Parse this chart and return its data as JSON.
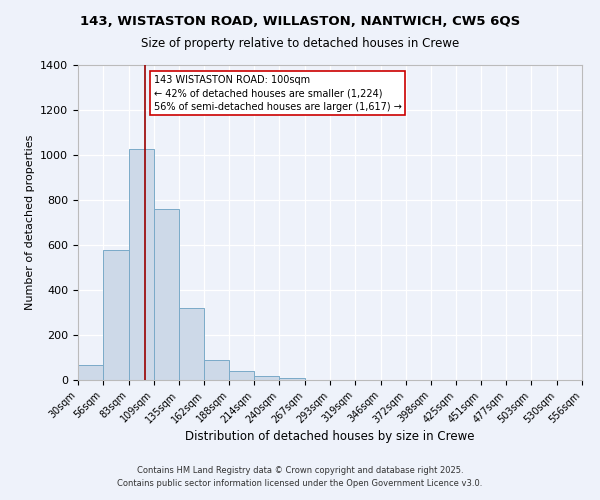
{
  "title": "143, WISTASTON ROAD, WILLASTON, NANTWICH, CW5 6QS",
  "subtitle": "Size of property relative to detached houses in Crewe",
  "xlabel": "Distribution of detached houses by size in Crewe",
  "ylabel": "Number of detached properties",
  "bar_color": "#cdd9e8",
  "bar_edge_color": "#7aaac8",
  "background_color": "#eef2fa",
  "grid_color": "#ffffff",
  "bins": [
    30,
    56,
    83,
    109,
    135,
    162,
    188,
    214,
    240,
    267,
    293,
    319,
    346,
    372,
    398,
    425,
    451,
    477,
    503,
    530,
    556
  ],
  "counts": [
    65,
    580,
    1025,
    760,
    320,
    90,
    38,
    18,
    8,
    2,
    0,
    0,
    0,
    0,
    0,
    0,
    0,
    0,
    0,
    0
  ],
  "property_size": 100,
  "vline_color": "#990000",
  "annotation_text": "143 WISTASTON ROAD: 100sqm\n← 42% of detached houses are smaller (1,224)\n56% of semi-detached houses are larger (1,617) →",
  "annotation_box_edge": "#cc0000",
  "ylim": [
    0,
    1400
  ],
  "yticks": [
    0,
    200,
    400,
    600,
    800,
    1000,
    1200,
    1400
  ],
  "footer_line1": "Contains HM Land Registry data © Crown copyright and database right 2025.",
  "footer_line2": "Contains public sector information licensed under the Open Government Licence v3.0."
}
